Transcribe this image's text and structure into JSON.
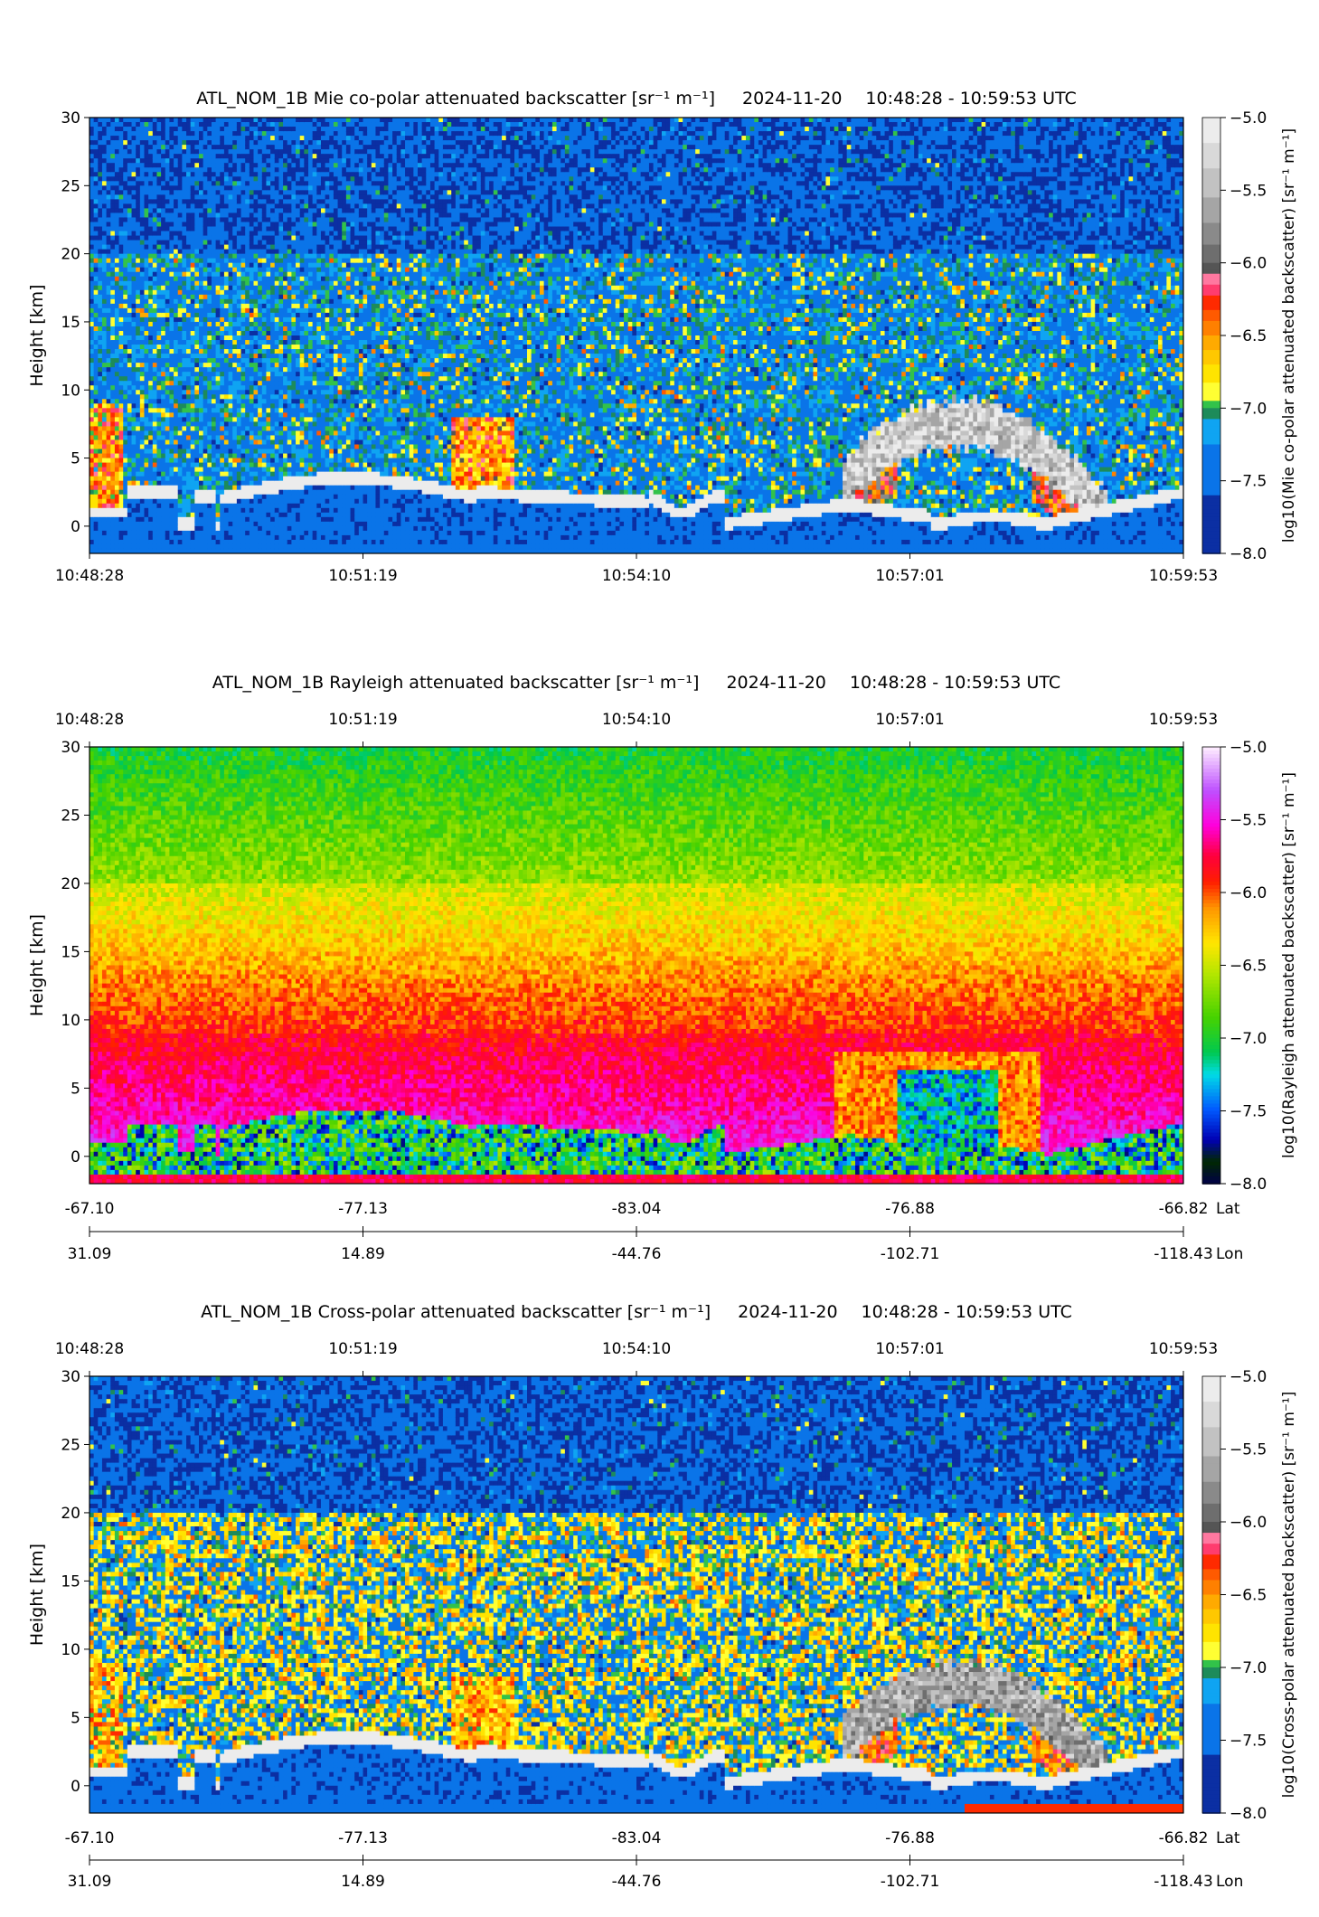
{
  "figure": {
    "date": "2024-11-20",
    "time_range": "10:48:28 - 10:59:53 UTC"
  },
  "chart_data": [
    {
      "type": "heatmap",
      "title": "ATL_NOM_1B Mie co-polar attenuated backscatter [sr⁻¹ m⁻¹]",
      "ylabel": "Height [km]",
      "ylim": [
        -2,
        30
      ],
      "yticks": [
        0,
        5,
        10,
        15,
        20,
        25,
        30
      ],
      "time_ticks": [
        "10:48:28",
        "10:51:19",
        "10:54:10",
        "10:57:01",
        "10:59:53"
      ],
      "time_axis_position": "bottom",
      "colorbar": {
        "label": "log10(Mie co-polar attenuated backscatter) [sr⁻¹ m⁻¹]",
        "range": [
          -8.0,
          -5.0
        ],
        "ticks": [
          "−5.0",
          "−5.5",
          "−6.0",
          "−6.5",
          "−7.0",
          "−7.5",
          "−8.0"
        ],
        "colormap": "calipso"
      },
      "scene": "mie"
    },
    {
      "type": "heatmap",
      "title": "ATL_NOM_1B Rayleigh attenuated backscatter [sr⁻¹ m⁻¹]",
      "ylabel": "Height [km]",
      "ylim": [
        -2,
        30
      ],
      "yticks": [
        0,
        5,
        10,
        15,
        20,
        25,
        30
      ],
      "time_ticks": [
        "10:48:28",
        "10:51:19",
        "10:54:10",
        "10:57:01",
        "10:59:53"
      ],
      "time_axis_position": "top",
      "lat_ticks": [
        "-67.10",
        "-77.13",
        "-83.04",
        "-76.88",
        "-66.82"
      ],
      "lon_ticks": [
        "31.09",
        "14.89",
        "-44.76",
        "-102.71",
        "-118.43"
      ],
      "lat_label": "Lat",
      "lon_label": "Lon",
      "colorbar": {
        "label": "log10(Rayleigh attenuated backscatter) [sr⁻¹ m⁻¹]",
        "range": [
          -8.0,
          -5.0
        ],
        "ticks": [
          "−5.0",
          "−5.5",
          "−6.0",
          "−6.5",
          "−7.0",
          "−7.5",
          "−8.0"
        ],
        "colormap": "rainbow"
      },
      "scene": "rayleigh"
    },
    {
      "type": "heatmap",
      "title": "ATL_NOM_1B Cross-polar attenuated backscatter [sr⁻¹ m⁻¹]",
      "ylabel": "Height [km]",
      "ylim": [
        -2,
        30
      ],
      "yticks": [
        0,
        5,
        10,
        15,
        20,
        25,
        30
      ],
      "time_ticks": [
        "10:48:28",
        "10:51:19",
        "10:54:10",
        "10:57:01",
        "10:59:53"
      ],
      "time_axis_position": "top",
      "lat_ticks": [
        "-67.10",
        "-77.13",
        "-83.04",
        "-76.88",
        "-66.82"
      ],
      "lon_ticks": [
        "31.09",
        "14.89",
        "-44.76",
        "-102.71",
        "-118.43"
      ],
      "lat_label": "Lat",
      "lon_label": "Lon",
      "colorbar": {
        "label": "log10(Cross-polar attenuated backscatter) [sr⁻¹ m⁻¹]",
        "range": [
          -8.0,
          -5.0
        ],
        "ticks": [
          "−5.0",
          "−5.5",
          "−6.0",
          "−6.5",
          "−7.0",
          "−7.5",
          "−8.0"
        ],
        "colormap": "calipso"
      },
      "scene": "cross"
    }
  ]
}
